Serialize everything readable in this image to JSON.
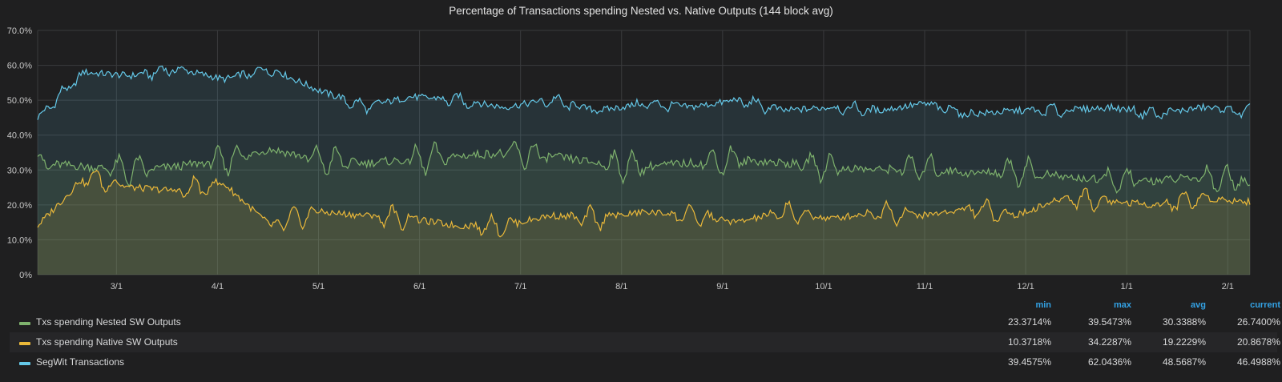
{
  "chart_data": {
    "type": "area",
    "title": "Percentage of Transactions spending Nested vs. Native Outputs (144 block avg)",
    "ylim": [
      0,
      70
    ],
    "yticks": [
      "0%",
      "10.0%",
      "20.0%",
      "30.0%",
      "40.0%",
      "50.0%",
      "60.0%",
      "70.0%"
    ],
    "xticks": [
      "3/1",
      "4/1",
      "5/1",
      "6/1",
      "7/1",
      "8/1",
      "9/1",
      "10/1",
      "11/1",
      "12/1",
      "1/1",
      "2/1"
    ],
    "x": [
      0,
      0.5,
      1,
      1.5,
      2,
      2.5,
      3,
      3.5,
      4,
      4.5,
      5,
      5.5,
      6,
      6.5,
      7,
      7.5,
      8,
      8.5,
      9,
      9.5,
      10,
      10.5,
      11,
      11.5,
      12,
      12.5,
      13
    ],
    "series": [
      {
        "name": "SegWit Transactions",
        "color": "#64c8e8",
        "values": [
          45,
          58,
          57,
          59,
          56,
          59,
          53,
          48,
          51,
          50,
          48,
          50,
          47,
          49,
          48,
          50,
          47,
          48,
          47,
          49,
          46,
          47,
          47,
          48,
          46,
          48,
          46.5
        ]
      },
      {
        "name": "Txs spending Nested SW Outputs",
        "color": "#7eb26d",
        "values": [
          32,
          31,
          30,
          31,
          33,
          36,
          33,
          32,
          33,
          34,
          35,
          34,
          32,
          31,
          32,
          33,
          32,
          31,
          30,
          31,
          29,
          30,
          28,
          27,
          27,
          28,
          26.7
        ]
      },
      {
        "name": "Txs spending Native SW Outputs",
        "color": "#eab839",
        "values": [
          14,
          28,
          25,
          24,
          26,
          14,
          18,
          17,
          16,
          14,
          14,
          17,
          16,
          18,
          17,
          15,
          18,
          16,
          18,
          17,
          19,
          17,
          22,
          21,
          20,
          22,
          20.9
        ]
      }
    ]
  },
  "legend": {
    "headers": {
      "min": "min",
      "max": "max",
      "avg": "avg",
      "current": "current"
    },
    "rows": [
      {
        "name": "Txs spending Nested SW Outputs",
        "color": "#7eb26d",
        "min": "23.3714%",
        "max": "39.5473%",
        "avg": "30.3388%",
        "current": "26.7400%"
      },
      {
        "name": "Txs spending Native SW Outputs",
        "color": "#eab839",
        "min": "10.3718%",
        "max": "34.2287%",
        "avg": "19.2229%",
        "current": "20.8678%"
      },
      {
        "name": "SegWit Transactions",
        "color": "#64c8e8",
        "min": "39.4575%",
        "max": "62.0436%",
        "avg": "48.5687%",
        "current": "46.4988%"
      }
    ]
  }
}
